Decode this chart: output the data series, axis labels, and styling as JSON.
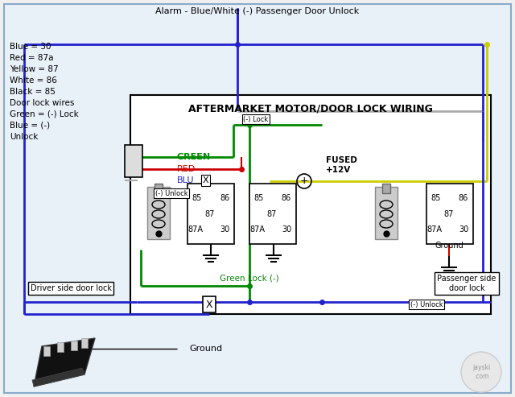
{
  "title": "AFTERMARKET MOTOR/DOOR LOCK WIRING",
  "top_label": "Alarm - Blue/White (-) Passenger Door Unlock",
  "legend_lines": [
    "Blue = 30",
    "Red = 87a",
    "Yellow = 87",
    "White = 86",
    "Black = 85",
    "Door lock wires",
    "Green = (-) Lock",
    "Blue = (-)",
    "Unlock"
  ],
  "bg_color": "#f0f0f0",
  "annotations": {
    "green_lock": "Green Lock (-)",
    "x_marker": "X",
    "minus_unlock_left": "(-) Unlock",
    "minus_unlock_right": "(-) Unlock",
    "minus_lock_top": "(-) Lock",
    "fused_12v": "FUSED\n+12V",
    "green_label": "GREEN",
    "red_label": "RED",
    "blue_label": "BLU",
    "x_label2": "X",
    "ground_switch": "Ground",
    "driver_lock": "Driver side door lock",
    "passenger_lock": "Passenger side\ndoor lock",
    "ground_relay": "Ground"
  },
  "colors": {
    "blue_wire": "#2222cc",
    "green_wire": "#008800",
    "yellow_wire": "#cccc00",
    "gray_wire": "#aaaaaa",
    "red_wire": "#cc0000",
    "black": "#000000",
    "white": "#ffffff",
    "light_bg": "#e8f0f8"
  }
}
